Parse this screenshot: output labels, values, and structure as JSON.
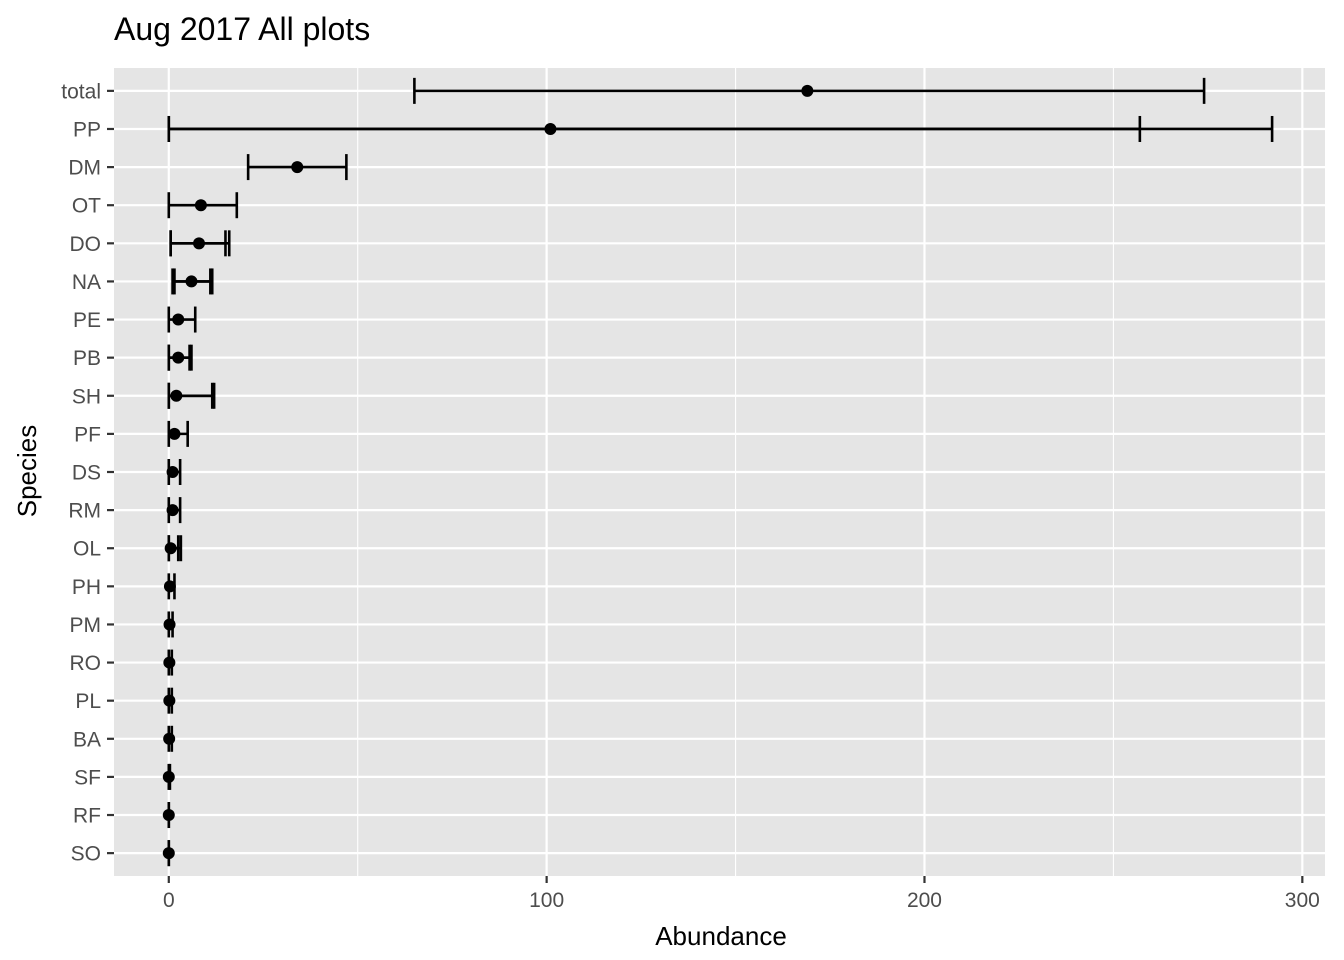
{
  "chart_data": {
    "type": "errorbar",
    "title": "Aug 2017 All plots",
    "xlabel": "Abundance",
    "ylabel": "Species",
    "xlim": [
      -14.5,
      306
    ],
    "x_ticks": [
      0,
      100,
      200,
      300
    ],
    "x_tick_labels": [
      "0",
      "100",
      "200",
      "300"
    ],
    "grid": true,
    "categories": [
      "total",
      "PP",
      "DM",
      "OT",
      "DO",
      "NA",
      "PE",
      "PB",
      "SH",
      "PF",
      "DS",
      "RM",
      "OL",
      "PH",
      "PM",
      "RO",
      "PL",
      "BA",
      "SF",
      "RF",
      "SO"
    ],
    "values": [
      169,
      101,
      34,
      8.5,
      8,
      6,
      2.5,
      2.5,
      2,
      1.5,
      1,
      1,
      0.5,
      0.3,
      0.2,
      0.15,
      0.15,
      0.1,
      0,
      0,
      0
    ],
    "intervals": [
      [
        [
          65,
          274
        ]
      ],
      [
        [
          0,
          257
        ],
        [
          0,
          292
        ]
      ],
      [
        [
          21,
          47
        ]
      ],
      [
        [
          0,
          18
        ]
      ],
      [
        [
          0.5,
          16
        ],
        [
          0.5,
          15
        ]
      ],
      [
        [
          1,
          11
        ],
        [
          1.5,
          11.5
        ]
      ],
      [
        [
          0,
          7
        ]
      ],
      [
        [
          0,
          5.5
        ],
        [
          0,
          6
        ]
      ],
      [
        [
          0,
          11.5
        ],
        [
          0,
          12
        ]
      ],
      [
        [
          0,
          5
        ]
      ],
      [
        [
          0,
          3
        ]
      ],
      [
        [
          0,
          3
        ]
      ],
      [
        [
          0,
          2.5
        ],
        [
          0,
          3.2
        ]
      ],
      [
        [
          0,
          1.5
        ]
      ],
      [
        [
          0,
          1
        ]
      ],
      [
        [
          0,
          0.8
        ]
      ],
      [
        [
          0,
          0.8
        ]
      ],
      [
        [
          0,
          0.8
        ]
      ],
      [
        [
          0,
          0.3
        ]
      ],
      [
        [
          0,
          0
        ]
      ],
      [
        [
          0,
          0
        ]
      ]
    ],
    "colors": {
      "panel": "#e5e5e5",
      "grid": "#ffffff",
      "mark": "#000000",
      "tick": "#4d4d4d"
    }
  }
}
